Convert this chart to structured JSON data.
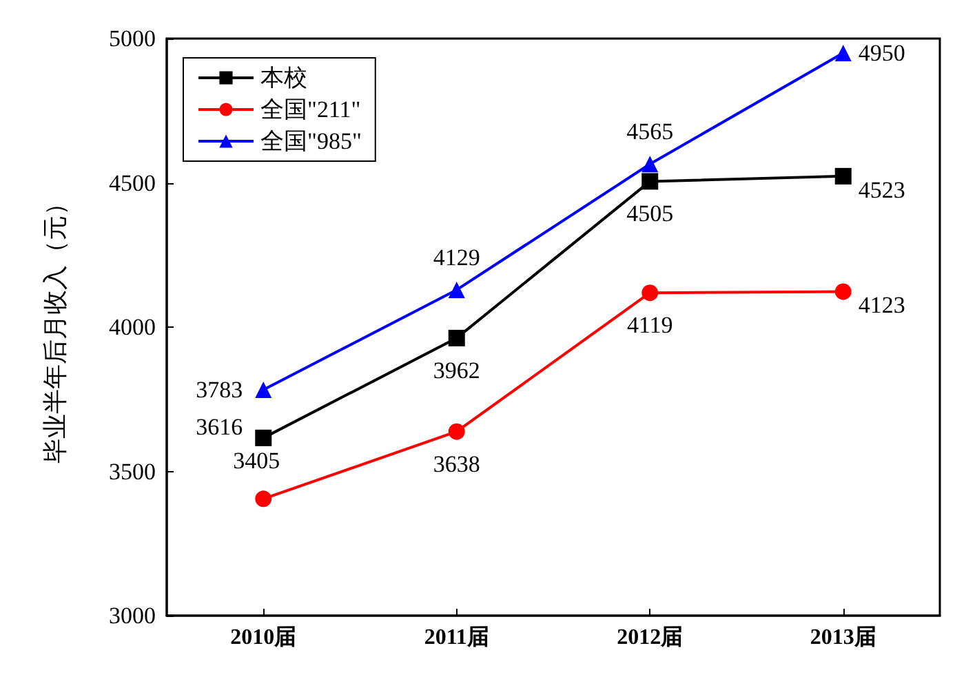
{
  "chart_data": {
    "type": "line",
    "ylabel": "毕业半年后月收入（元）",
    "categories": [
      "2010届",
      "2011届",
      "2012届",
      "2013届"
    ],
    "series": [
      {
        "name": "本校",
        "color": "#000000",
        "marker": "square",
        "values": [
          3616,
          3962,
          4505,
          4523
        ]
      },
      {
        "name": "全国\"211\"",
        "color": "#ff0000",
        "marker": "circle",
        "values": [
          3405,
          3638,
          4119,
          4123
        ]
      },
      {
        "name": "全国\"985\"",
        "color": "#0000ff",
        "marker": "triangle",
        "values": [
          3783,
          4129,
          4565,
          4950
        ]
      }
    ],
    "ylim": [
      3000,
      5000
    ],
    "yticks": [
      3000,
      3500,
      4000,
      4500,
      5000
    ],
    "grid": false,
    "legend": "top left",
    "data_labels": true,
    "line_style": "solid"
  }
}
